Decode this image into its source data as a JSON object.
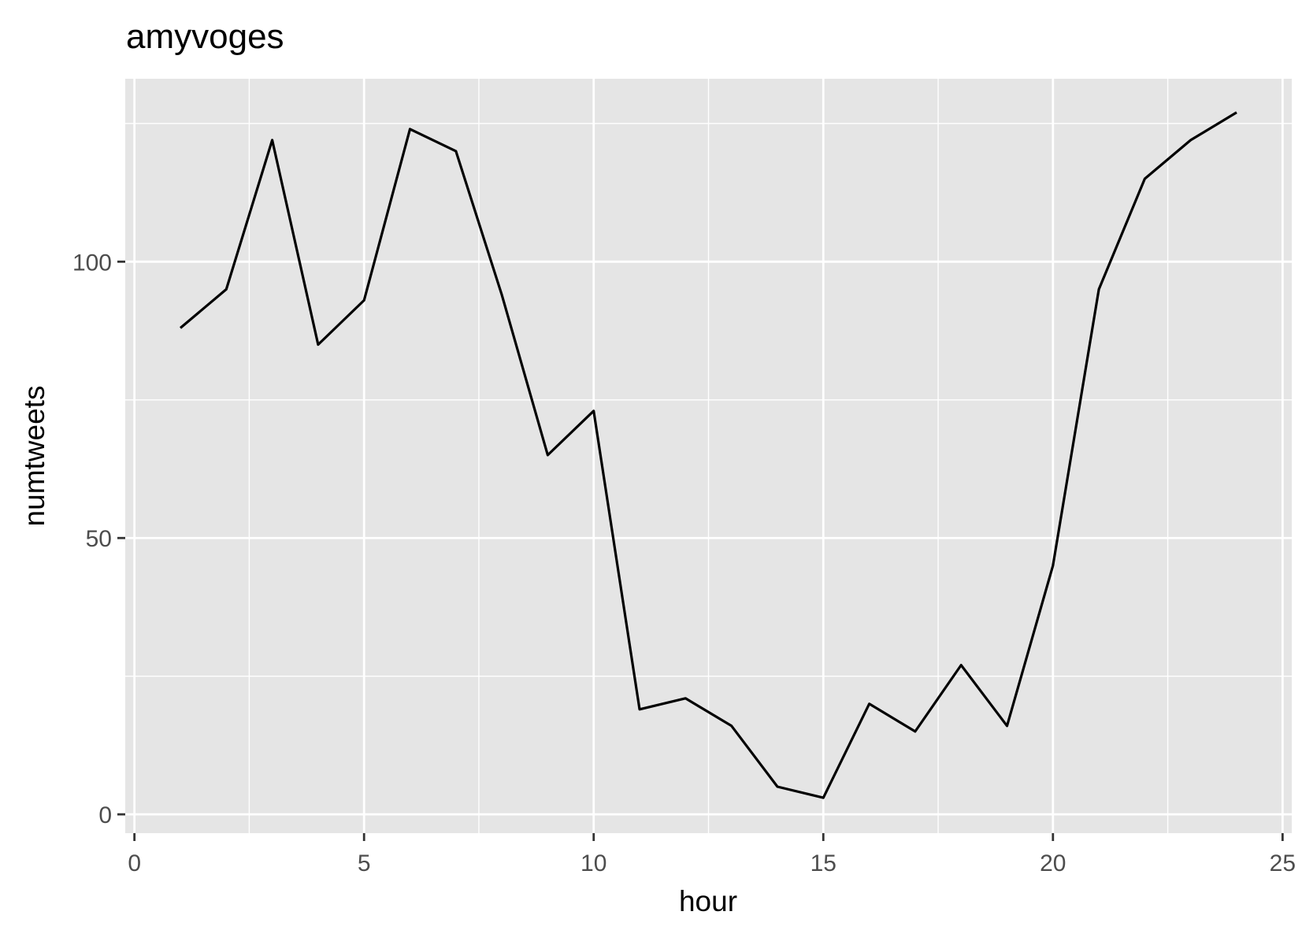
{
  "chart_data": {
    "type": "line",
    "title": "amyvoges",
    "xlabel": "hour",
    "ylabel": "numtweets",
    "xlim": [
      -0.2,
      25.2
    ],
    "ylim": [
      -3.4,
      133.1
    ],
    "x_ticks": [
      0,
      5,
      10,
      15,
      20,
      25
    ],
    "x_minor_ticks": [
      2.5,
      7.5,
      12.5,
      17.5,
      22.5
    ],
    "y_ticks": [
      0,
      50,
      100
    ],
    "y_minor_ticks": [
      25,
      75,
      125
    ],
    "grid": true,
    "colors": {
      "panel_background": "#e5e5e5",
      "grid_line": "#ffffff",
      "series_line": "#000000",
      "tick_mark": "#333333",
      "tick_label": "#4d4d4d"
    },
    "series": [
      {
        "x": [
          1,
          2,
          3,
          4,
          5,
          6,
          7,
          8,
          9,
          10,
          11,
          12,
          13,
          14,
          15,
          16,
          17,
          18,
          19,
          20,
          21,
          22,
          23,
          24
        ],
        "values": [
          88,
          95,
          122,
          85,
          93,
          124,
          120,
          94,
          65,
          73,
          19,
          21,
          16,
          5,
          3,
          20,
          15,
          27,
          16,
          45,
          95,
          115,
          122,
          127
        ]
      }
    ]
  }
}
